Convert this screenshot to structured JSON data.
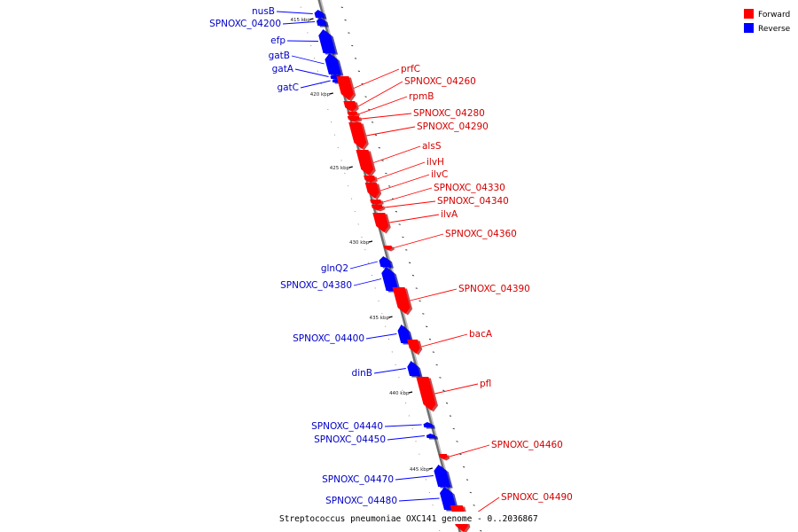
{
  "legend": {
    "forward_label": "Forward",
    "reverse_label": "Reverse",
    "forward_color": "#ff0000",
    "reverse_color": "#0000ff"
  },
  "caption": "Streptococcus pneumoniae OXC141 genome - 0..2036867",
  "axis": {
    "tick_labels": [
      "415 kbp",
      "420 kbp",
      "425 kbp",
      "430 kbp",
      "435 kbp",
      "440 kbp",
      "445 kbp"
    ]
  },
  "genes": [
    {
      "name": "nusB",
      "strand": "reverse"
    },
    {
      "name": "SPNOXC_04200",
      "strand": "reverse"
    },
    {
      "name": "efp",
      "strand": "reverse"
    },
    {
      "name": "gatB",
      "strand": "reverse"
    },
    {
      "name": "gatA",
      "strand": "reverse"
    },
    {
      "name": "gatC",
      "strand": "reverse"
    },
    {
      "name": "prfC",
      "strand": "forward"
    },
    {
      "name": "SPNOXC_04260",
      "strand": "forward"
    },
    {
      "name": "rpmB",
      "strand": "forward"
    },
    {
      "name": "SPNOXC_04280",
      "strand": "forward"
    },
    {
      "name": "SPNOXC_04290",
      "strand": "forward"
    },
    {
      "name": "alsS",
      "strand": "forward"
    },
    {
      "name": "ilvH",
      "strand": "forward"
    },
    {
      "name": "ilvC",
      "strand": "forward"
    },
    {
      "name": "SPNOXC_04330",
      "strand": "forward"
    },
    {
      "name": "SPNOXC_04340",
      "strand": "forward"
    },
    {
      "name": "ilvA",
      "strand": "forward"
    },
    {
      "name": "SPNOXC_04360",
      "strand": "forward"
    },
    {
      "name": "glnQ2",
      "strand": "reverse"
    },
    {
      "name": "SPNOXC_04380",
      "strand": "reverse"
    },
    {
      "name": "SPNOXC_04390",
      "strand": "forward"
    },
    {
      "name": "SPNOXC_04400",
      "strand": "reverse"
    },
    {
      "name": "bacA",
      "strand": "forward"
    },
    {
      "name": "dinB",
      "strand": "reverse"
    },
    {
      "name": "pfl",
      "strand": "forward"
    },
    {
      "name": "SPNOXC_04440",
      "strand": "reverse"
    },
    {
      "name": "SPNOXC_04450",
      "strand": "reverse"
    },
    {
      "name": "SPNOXC_04460",
      "strand": "forward"
    },
    {
      "name": "SPNOXC_04470",
      "strand": "reverse"
    },
    {
      "name": "SPNOXC_04480",
      "strand": "reverse"
    },
    {
      "name": "SPNOXC_04490",
      "strand": "forward"
    }
  ]
}
